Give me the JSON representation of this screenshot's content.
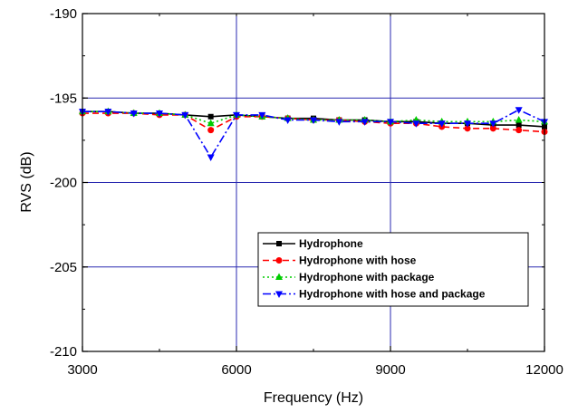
{
  "chart_data": {
    "type": "line",
    "xlabel": "Frequency (Hz)",
    "ylabel": "RVS (dB)",
    "xlim": [
      3000,
      12000
    ],
    "ylim": [
      -210,
      -190
    ],
    "x_ticks": [
      3000,
      6000,
      9000,
      12000
    ],
    "x_tick_labels": [
      "3000",
      "6000",
      "9000",
      "12000"
    ],
    "y_ticks": [
      -210,
      -205,
      -200,
      -195,
      -190
    ],
    "y_tick_labels": [
      "-210",
      "-205",
      "-200",
      "-195",
      "-190"
    ],
    "grid": true,
    "legend_position": "lower-right",
    "series": [
      {
        "name": "Hydrophone",
        "color": "#000000",
        "marker": "square",
        "line_style": "solid",
        "x": [
          3000,
          3500,
          4000,
          4500,
          5000,
          5500,
          6000,
          6500,
          7000,
          7500,
          8000,
          8500,
          9000,
          9500,
          10000,
          10500,
          11000,
          11500,
          12000
        ],
        "y": [
          -195.8,
          -195.8,
          -195.9,
          -195.9,
          -196.0,
          -196.1,
          -196.0,
          -196.1,
          -196.2,
          -196.2,
          -196.3,
          -196.3,
          -196.4,
          -196.4,
          -196.5,
          -196.5,
          -196.6,
          -196.6,
          -196.7
        ]
      },
      {
        "name": "Hydrophone with hose",
        "color": "#ff0000",
        "marker": "circle",
        "line_style": "dashed",
        "x": [
          3000,
          3500,
          4000,
          4500,
          5000,
          5500,
          6000,
          6500,
          7000,
          7500,
          8000,
          8500,
          9000,
          9500,
          10000,
          10500,
          11000,
          11500,
          12000
        ],
        "y": [
          -195.9,
          -195.9,
          -195.9,
          -196.0,
          -196.0,
          -196.9,
          -196.1,
          -196.1,
          -196.2,
          -196.3,
          -196.3,
          -196.4,
          -196.5,
          -196.5,
          -196.7,
          -196.8,
          -196.8,
          -196.9,
          -197.0
        ]
      },
      {
        "name": "Hydrophone with package",
        "color": "#00cc00",
        "marker": "triangle-up",
        "line_style": "dotted",
        "x": [
          3000,
          3500,
          4000,
          4500,
          5000,
          5500,
          6000,
          6500,
          7000,
          7500,
          8000,
          8500,
          9000,
          9500,
          10000,
          10500,
          11000,
          11500,
          12000
        ],
        "y": [
          -195.8,
          -195.8,
          -195.9,
          -195.9,
          -196.0,
          -196.5,
          -196.0,
          -196.1,
          -196.2,
          -196.3,
          -196.3,
          -196.3,
          -196.4,
          -196.3,
          -196.4,
          -196.4,
          -196.4,
          -196.3,
          -196.4
        ]
      },
      {
        "name": "Hydrophone with hose and package",
        "color": "#0000ff",
        "marker": "triangle-down",
        "line_style": "dash-dot",
        "x": [
          3000,
          3500,
          4000,
          4500,
          5000,
          5500,
          6000,
          6500,
          7000,
          7500,
          8000,
          8500,
          9000,
          9500,
          10000,
          10500,
          11000,
          11500,
          12000
        ],
        "y": [
          -195.8,
          -195.8,
          -195.9,
          -195.9,
          -196.0,
          -198.5,
          -196.0,
          -196.0,
          -196.3,
          -196.3,
          -196.4,
          -196.4,
          -196.4,
          -196.5,
          -196.5,
          -196.5,
          -196.5,
          -195.7,
          -196.4
        ]
      }
    ]
  }
}
